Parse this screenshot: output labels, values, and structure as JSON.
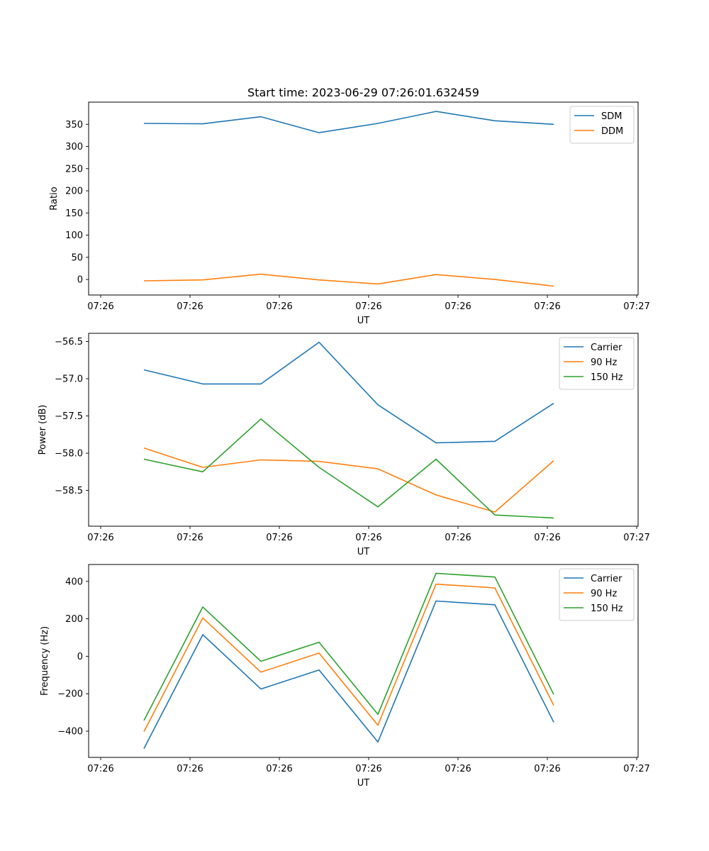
{
  "chart_data": [
    {
      "type": "line",
      "title": "Start time: 2023-06-29 07:26:01.632459",
      "xlabel": "UT",
      "ylabel": "Ratio",
      "x_tick_labels": [
        "07:26",
        "07:26",
        "07:26",
        "07:26",
        "07:26",
        "07:26",
        "07:27"
      ],
      "y_ticks": [
        0,
        50,
        100,
        150,
        200,
        250,
        300,
        350
      ],
      "ylim": [
        -35,
        400
      ],
      "legend": "top-right",
      "grid": false,
      "series": [
        {
          "name": "SDM",
          "color": "#1f77b4",
          "values": [
            352,
            351,
            367,
            331,
            352,
            379,
            358,
            350
          ]
        },
        {
          "name": "DDM",
          "color": "#ff7f0e",
          "values": [
            -3,
            -1,
            12,
            -1,
            -10,
            11,
            0,
            -15
          ]
        }
      ]
    },
    {
      "type": "line",
      "title": "",
      "xlabel": "UT",
      "ylabel": "Power (dB)",
      "x_tick_labels": [
        "07:26",
        "07:26",
        "07:26",
        "07:26",
        "07:26",
        "07:26",
        "07:27"
      ],
      "y_ticks": [
        -58.5,
        -58.0,
        -57.5,
        -57.0,
        -56.5
      ],
      "y_tick_labels": [
        "−58.5",
        "−58.0",
        "−57.5",
        "−57.0",
        "−56.5"
      ],
      "ylim": [
        -58.98,
        -56.39
      ],
      "legend": "top-right",
      "grid": false,
      "series": [
        {
          "name": "Carrier",
          "color": "#1f77b4",
          "values": [
            -56.88,
            -57.07,
            -57.07,
            -56.51,
            -57.35,
            -57.86,
            -57.84,
            -57.33
          ]
        },
        {
          "name": "90 Hz",
          "color": "#ff7f0e",
          "values": [
            -57.93,
            -58.19,
            -58.09,
            -58.11,
            -58.21,
            -58.56,
            -58.79,
            -58.1
          ]
        },
        {
          "name": "150 Hz",
          "color": "#2ca02c",
          "values": [
            -58.08,
            -58.25,
            -57.54,
            -58.19,
            -58.72,
            -58.08,
            -58.83,
            -58.87
          ]
        }
      ]
    },
    {
      "type": "line",
      "title": "",
      "xlabel": "UT",
      "ylabel": "Frequency (Hz)",
      "x_tick_labels": [
        "07:26",
        "07:26",
        "07:26",
        "07:26",
        "07:26",
        "07:26",
        "07:27"
      ],
      "y_ticks": [
        -400,
        -200,
        0,
        200,
        400
      ],
      "y_tick_labels": [
        "−400",
        "−200",
        "0",
        "200",
        "400"
      ],
      "ylim": [
        -540,
        490
      ],
      "legend": "top-right",
      "grid": false,
      "series": [
        {
          "name": "Carrier",
          "color": "#1f77b4",
          "values": [
            -493,
            115,
            -175,
            -73,
            -458,
            295,
            275,
            -352
          ]
        },
        {
          "name": "90 Hz",
          "color": "#ff7f0e",
          "values": [
            -403,
            205,
            -85,
            17,
            -368,
            385,
            365,
            -262
          ]
        },
        {
          "name": "150 Hz",
          "color": "#2ca02c",
          "values": [
            -343,
            263,
            -27,
            75,
            -310,
            443,
            423,
            -204
          ]
        }
      ]
    }
  ]
}
